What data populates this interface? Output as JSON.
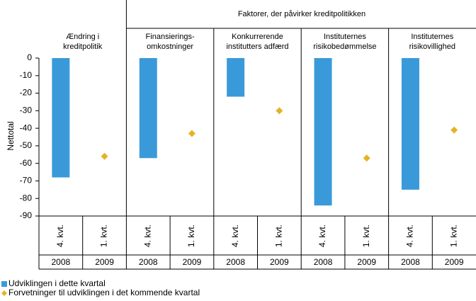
{
  "chart_data": {
    "type": "bar",
    "header": "Faktorer, der påvirker kreditpolitikken",
    "y_label": "Nettotal",
    "groups": [
      [
        "Ændring i",
        "kreditpolitik"
      ],
      [
        "Finansierings-",
        "omkostninger"
      ],
      [
        "Konkurrerende",
        "institutters adfærd"
      ],
      [
        "Instituternes",
        "risikobedømmelse"
      ],
      [
        "Instituternes",
        "risikovillighed"
      ]
    ],
    "categories": [
      "4. kvt.",
      "1. kvt.",
      "4. kvt.",
      "1. kvt.",
      "4. kvt.",
      "1. kvt.",
      "4. kvt.",
      "1. kvt.",
      "4. kvt.",
      "1. kvt."
    ],
    "years": [
      "2008",
      "2009",
      "2008",
      "2009",
      "2008",
      "2009",
      "2008",
      "2009",
      "2008",
      "2009"
    ],
    "series": [
      {
        "name": "Udviklingen i dette kvartal",
        "color": "#3a9ad9",
        "marker": "bar",
        "values": [
          -68,
          null,
          -57,
          null,
          -22,
          null,
          -84,
          null,
          -75,
          null
        ]
      },
      {
        "name": "Forvetninger til udviklingen i det kommende kvartal",
        "color": "#e5b323",
        "marker": "diamond",
        "values": [
          null,
          -56,
          null,
          -43,
          null,
          -30,
          null,
          -57,
          null,
          -41
        ]
      }
    ],
    "ylim": [
      -90,
      0
    ],
    "yticks": [
      0,
      -10,
      -20,
      -30,
      -40,
      -50,
      -60,
      -70,
      -80,
      -90
    ]
  }
}
